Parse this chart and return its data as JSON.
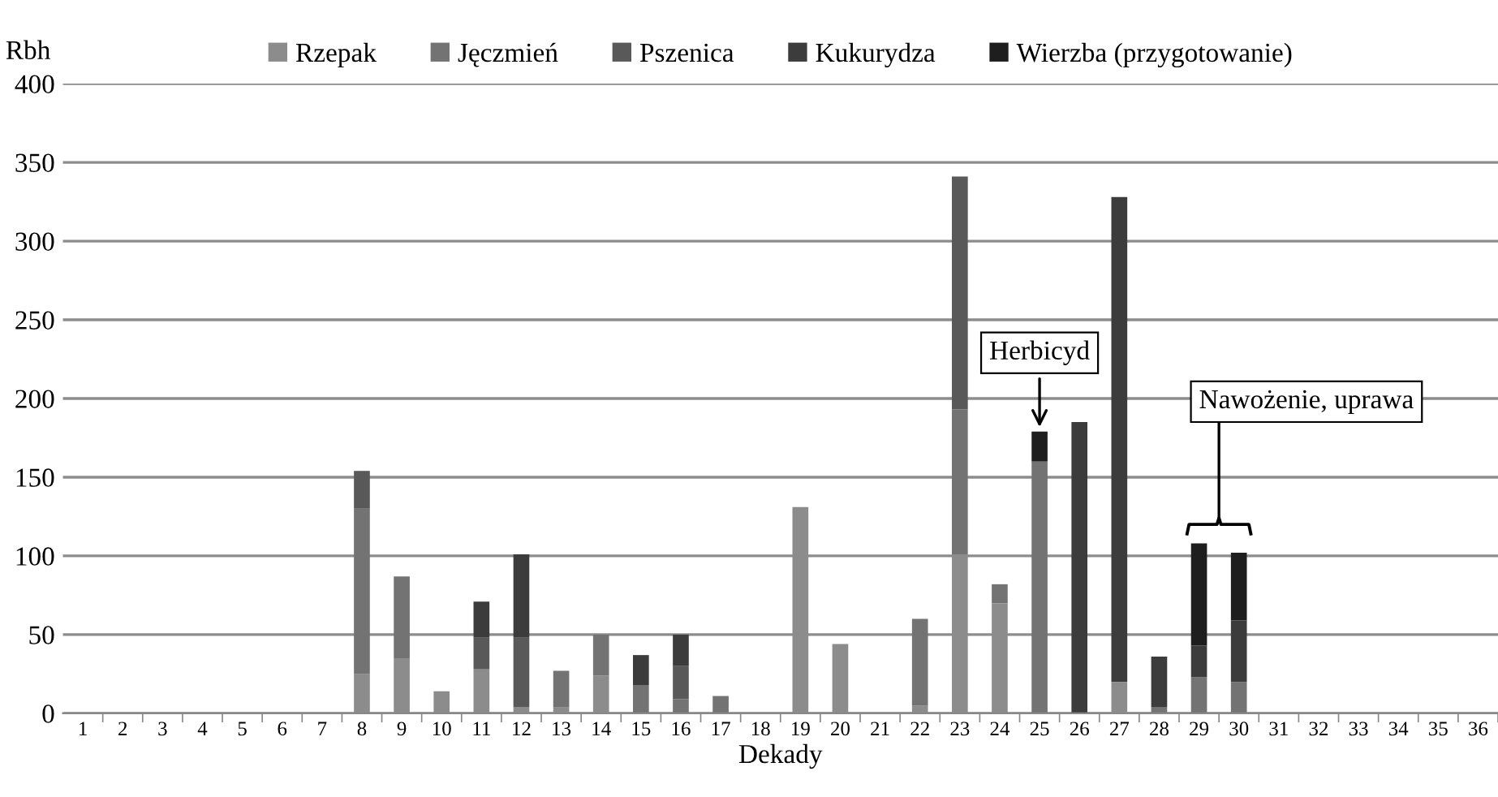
{
  "chart_data": {
    "type": "bar",
    "stacked": true,
    "ylabel": "Rbh",
    "xlabel": "Dekady",
    "categories": [
      "1",
      "2",
      "3",
      "4",
      "5",
      "6",
      "7",
      "8",
      "9",
      "10",
      "11",
      "12",
      "13",
      "14",
      "15",
      "16",
      "17",
      "18",
      "19",
      "20",
      "21",
      "22",
      "23",
      "24",
      "25",
      "26",
      "27",
      "28",
      "29",
      "30",
      "31",
      "32",
      "33",
      "34",
      "35",
      "36"
    ],
    "series": [
      {
        "name": "Rzepak",
        "color": "#8c8c8c",
        "values": [
          null,
          null,
          null,
          null,
          null,
          null,
          null,
          25,
          35,
          14,
          28,
          4,
          4,
          24,
          null,
          null,
          null,
          null,
          131,
          44,
          null,
          5,
          101,
          70,
          null,
          null,
          20,
          null,
          null,
          null,
          null,
          null,
          null,
          null,
          null,
          null
        ]
      },
      {
        "name": "Jęczmień",
        "color": "#737373",
        "values": [
          null,
          null,
          null,
          null,
          null,
          null,
          null,
          105,
          52,
          null,
          null,
          null,
          23,
          26,
          18,
          9,
          11,
          null,
          null,
          null,
          null,
          55,
          92,
          12,
          160,
          null,
          null,
          4,
          23,
          20,
          null,
          null,
          null,
          null,
          null,
          null
        ]
      },
      {
        "name": "Pszenica",
        "color": "#595959",
        "values": [
          null,
          null,
          null,
          null,
          null,
          null,
          null,
          24,
          null,
          null,
          20,
          44,
          null,
          null,
          null,
          21,
          null,
          null,
          null,
          null,
          null,
          null,
          148,
          null,
          null,
          null,
          null,
          null,
          null,
          null,
          null,
          null,
          null,
          null,
          null,
          null
        ]
      },
      {
        "name": "Kukurydza",
        "color": "#3c3c3c",
        "values": [
          null,
          null,
          null,
          null,
          null,
          null,
          null,
          null,
          null,
          null,
          23,
          53,
          null,
          null,
          19,
          20,
          null,
          null,
          null,
          null,
          null,
          null,
          null,
          null,
          null,
          185,
          308,
          32,
          20,
          39,
          null,
          null,
          null,
          null,
          null,
          null
        ]
      },
      {
        "name": "Wierzba (przygotowanie)",
        "color": "#1e1e1e",
        "values": [
          null,
          null,
          null,
          null,
          null,
          null,
          null,
          null,
          null,
          null,
          null,
          null,
          null,
          null,
          null,
          null,
          null,
          null,
          null,
          null,
          null,
          null,
          null,
          null,
          19,
          null,
          null,
          null,
          65,
          43,
          null,
          null,
          null,
          null,
          null,
          null
        ]
      }
    ],
    "ylim": [
      0,
      400
    ],
    "yticks": [
      0,
      50,
      100,
      150,
      200,
      250,
      300,
      350,
      400
    ],
    "grid": "y",
    "legend": "top",
    "annotations": [
      {
        "text": "Herbicyd",
        "x": "25",
        "y": 179
      },
      "Nawożenie, uprawa"
    ]
  }
}
